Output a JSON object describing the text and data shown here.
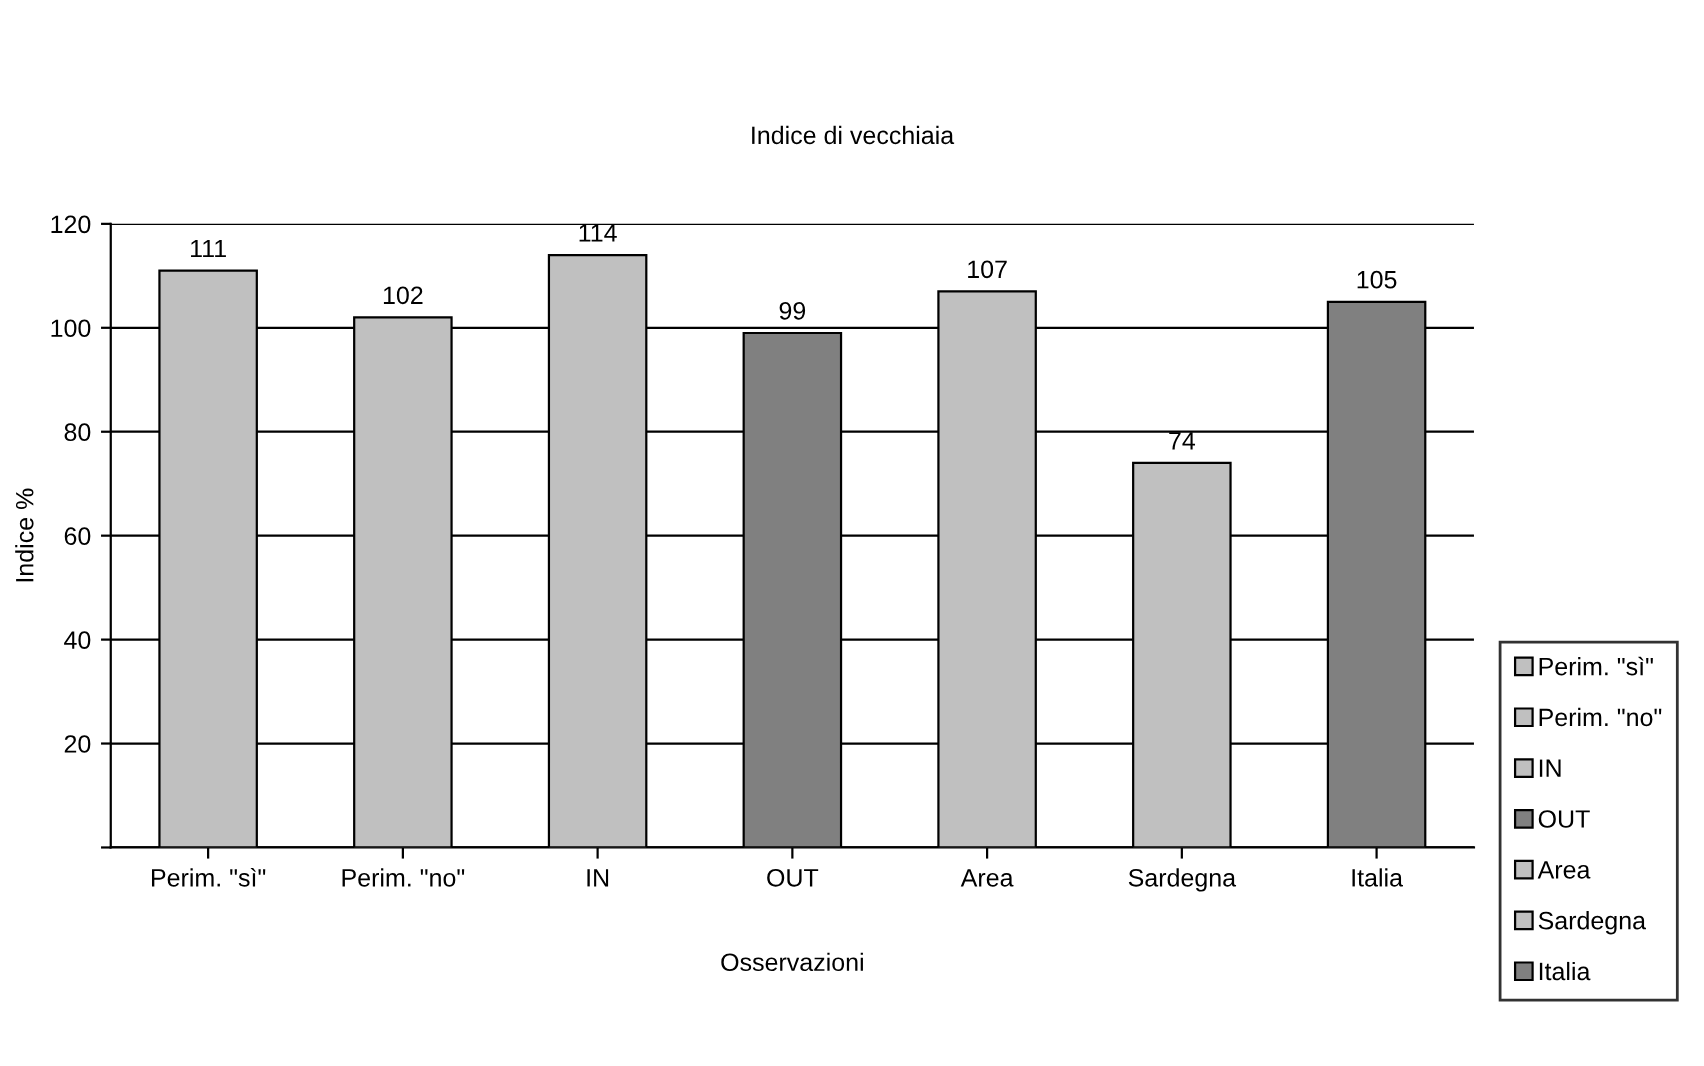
{
  "chart_data": {
    "type": "bar",
    "title": "Indice di vecchiaia",
    "xlabel": "Osservazioni",
    "ylabel": "Indice %",
    "categories": [
      "Perim. \"sì\"",
      "Perim. \"no\"",
      "IN",
      "OUT",
      "Area",
      "Sardegna",
      "Italia"
    ],
    "series": [
      {
        "name": "Perim. \"sì\"",
        "color": "#c0c0c0",
        "values": [
          111,
          null,
          null,
          null,
          null,
          null,
          null
        ]
      },
      {
        "name": "Perim. \"no\"",
        "color": "#c0c0c0",
        "values": [
          null,
          102,
          null,
          null,
          null,
          null,
          null
        ]
      },
      {
        "name": "IN",
        "color": "#c0c0c0",
        "values": [
          null,
          null,
          114,
          null,
          null,
          null,
          null
        ]
      },
      {
        "name": "OUT",
        "color": "#808080",
        "values": [
          null,
          null,
          null,
          99,
          null,
          null,
          null
        ]
      },
      {
        "name": "Area",
        "color": "#c0c0c0",
        "values": [
          null,
          null,
          null,
          null,
          107,
          null,
          null
        ]
      },
      {
        "name": "Sardegna",
        "color": "#c0c0c0",
        "values": [
          null,
          null,
          null,
          null,
          null,
          74,
          null
        ]
      },
      {
        "name": "Italia",
        "color": "#808080",
        "values": [
          null,
          null,
          null,
          null,
          null,
          null,
          105
        ]
      }
    ],
    "ylim": [
      0,
      120
    ],
    "yticks": [
      {
        "value": 0,
        "label": null
      },
      20,
      40,
      60,
      80,
      100,
      120
    ],
    "grid": "y",
    "data_labels": true,
    "legend": "right"
  }
}
